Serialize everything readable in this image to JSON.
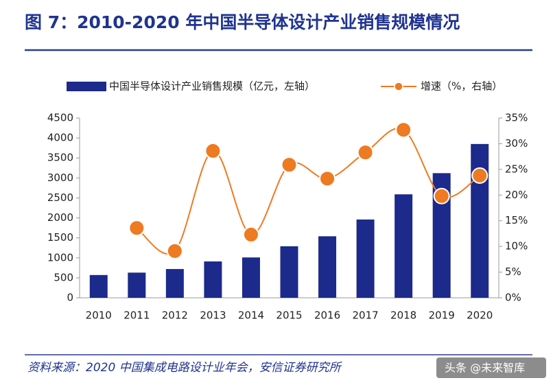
{
  "chart_data": {
    "type": "bar_line",
    "title": "图 7：2010-2020 年中国半导体设计产业销售规模情况",
    "source": "资料来源：2020 中国集成电路设计业年会，安信证券研究所",
    "watermark": "头条 @未来智库",
    "categories": [
      "2010",
      "2011",
      "2012",
      "2013",
      "2014",
      "2015",
      "2016",
      "2017",
      "2018",
      "2019",
      "2020"
    ],
    "series": [
      {
        "name": "中国半导体设计产业销售规模（亿元，左轴）",
        "type": "bar",
        "color": "#1c2a8c",
        "values": [
          570,
          630,
          720,
          910,
          1010,
          1290,
          1540,
          1960,
          2590,
          3120,
          3850
        ]
      },
      {
        "name": "增速（%，右轴）",
        "type": "line",
        "axis": "y2",
        "color": "#ee7a22",
        "values": [
          null,
          13.6,
          9.1,
          28.6,
          12.3,
          25.9,
          23.2,
          28.3,
          32.7,
          19.8,
          23.8
        ]
      }
    ],
    "ylim": [
      0,
      4500
    ],
    "yticks": [
      0,
      500,
      1000,
      1500,
      2000,
      2500,
      3000,
      3500,
      4000,
      4500
    ],
    "y2lim": [
      0,
      35
    ],
    "y2ticks": [
      {
        "value": 0,
        "label": "0%"
      },
      {
        "value": 5,
        "label": "5%"
      },
      {
        "value": 10,
        "label": "10%"
      },
      {
        "value": 15,
        "label": "15%"
      },
      {
        "value": 20,
        "label": "20%"
      },
      {
        "value": 25,
        "label": "25%"
      },
      {
        "value": 30,
        "label": "30%"
      },
      {
        "value": 35,
        "label": "35%"
      }
    ]
  }
}
